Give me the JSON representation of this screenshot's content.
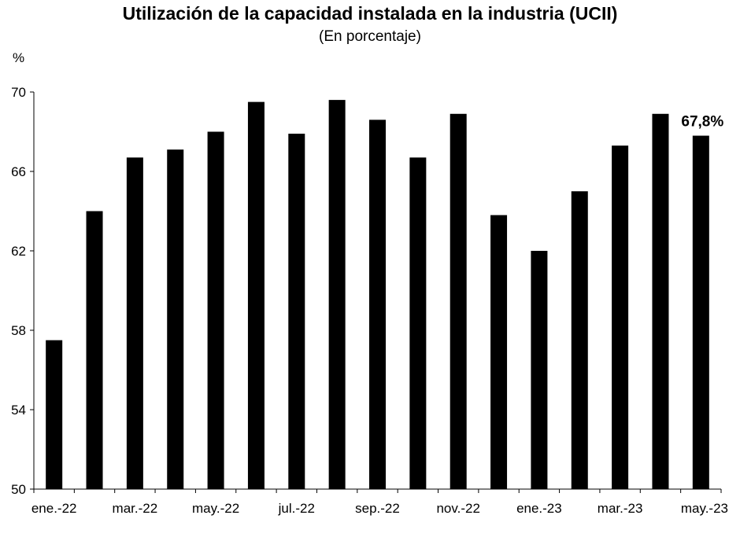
{
  "chart_data": {
    "type": "bar",
    "title": "Utilización de la capacidad instalada en la industria (UCII)",
    "subtitle": "(En porcentaje)",
    "ylabel": "%",
    "xlabel": "",
    "ylim": [
      50,
      70
    ],
    "yticks": [
      "50",
      "54",
      "58",
      "62",
      "66",
      "70"
    ],
    "grid": false,
    "legend": "none",
    "bar_color": "#000000",
    "categories": [
      "ene.-22",
      "feb.-22",
      "mar.-22",
      "abr.-22",
      "may.-22",
      "jun.-22",
      "jul.-22",
      "ago.-22",
      "sep.-22",
      "oct.-22",
      "nov.-22",
      "dic.-22",
      "ene.-23",
      "feb.-23",
      "mar.-23",
      "abr.-23",
      "may.-23"
    ],
    "visible_tick_labels": [
      "ene.-22",
      "mar.-22",
      "may.-22",
      "jul.-22",
      "sep.-22",
      "nov.-22",
      "ene.-23",
      "mar.-23",
      "may.-23"
    ],
    "values": [
      57.5,
      64.0,
      66.7,
      67.1,
      68.0,
      69.5,
      67.9,
      69.6,
      68.6,
      66.7,
      68.9,
      63.8,
      62.0,
      65.0,
      67.3,
      68.9,
      67.8
    ],
    "annotation": {
      "text": "67,8%",
      "category": "may.-23"
    }
  }
}
